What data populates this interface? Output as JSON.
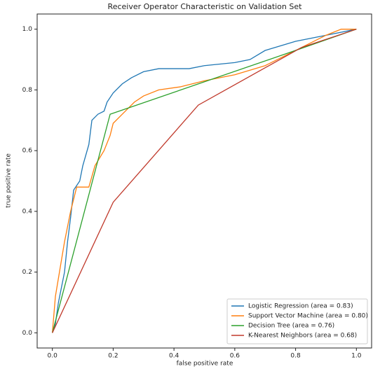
{
  "chart_data": {
    "type": "line",
    "title": "Receiver Operator Characteristic on Validation Set",
    "x_label": "false positive rate",
    "y_label": "true positive rate",
    "xlim": [
      -0.05,
      1.05
    ],
    "ylim": [
      -0.05,
      1.05
    ],
    "xticks": [
      {
        "value": 0,
        "label": "0.0"
      },
      {
        "value": 0.2,
        "label": "0.2"
      },
      {
        "value": 0.4,
        "label": "0.4"
      },
      {
        "value": 0.6,
        "label": "0.6"
      },
      {
        "value": 0.8,
        "label": "0.8"
      },
      {
        "value": 1,
        "label": "1.0"
      }
    ],
    "yticks": [
      {
        "value": 0,
        "label": "0.0"
      },
      {
        "value": 0.2,
        "label": "0.2"
      },
      {
        "value": 0.4,
        "label": "0.4"
      },
      {
        "value": 0.6,
        "label": "0.6"
      },
      {
        "value": 0.8,
        "label": "0.8"
      },
      {
        "value": 1,
        "label": "1.0"
      }
    ],
    "legend": "lower right",
    "series": [
      {
        "name": "Logistic Regression (area = 0.83)",
        "color": "#1f77b4",
        "x": [
          0,
          0.01,
          0.02,
          0.04,
          0.05,
          0.06,
          0.07,
          0.09,
          0.1,
          0.12,
          0.13,
          0.15,
          0.17,
          0.18,
          0.2,
          0.23,
          0.26,
          0.3,
          0.35,
          0.45,
          0.5,
          0.6,
          0.65,
          0.7,
          0.8,
          0.9,
          1
        ],
        "values": [
          0,
          0.03,
          0.1,
          0.2,
          0.3,
          0.38,
          0.47,
          0.5,
          0.55,
          0.62,
          0.7,
          0.72,
          0.73,
          0.76,
          0.79,
          0.82,
          0.84,
          0.86,
          0.87,
          0.87,
          0.88,
          0.89,
          0.9,
          0.93,
          0.96,
          0.98,
          1
        ]
      },
      {
        "name": "Support Vector Machine (area = 0.80)",
        "color": "#ff7f0e",
        "x": [
          0,
          0.01,
          0.02,
          0.04,
          0.06,
          0.08,
          0.12,
          0.14,
          0.17,
          0.19,
          0.2,
          0.23,
          0.27,
          0.3,
          0.35,
          0.42,
          0.5,
          0.6,
          0.7,
          0.8,
          0.9,
          0.95,
          1
        ],
        "values": [
          0,
          0.12,
          0.18,
          0.3,
          0.4,
          0.48,
          0.48,
          0.55,
          0.6,
          0.65,
          0.69,
          0.72,
          0.76,
          0.78,
          0.8,
          0.81,
          0.83,
          0.85,
          0.88,
          0.93,
          0.98,
          1,
          1
        ]
      },
      {
        "name": "Decision Tree (area = 0.76)",
        "color": "#2ca02c",
        "x": [
          0,
          0.19,
          0.8,
          1
        ],
        "values": [
          0,
          0.72,
          0.93,
          1
        ]
      },
      {
        "name": "K-Nearest Neighbors (area = 0.68)",
        "color": "#c0392b",
        "x": [
          0,
          0.2,
          0.48,
          0.82,
          1
        ],
        "values": [
          0,
          0.43,
          0.75,
          0.94,
          1
        ]
      }
    ]
  }
}
